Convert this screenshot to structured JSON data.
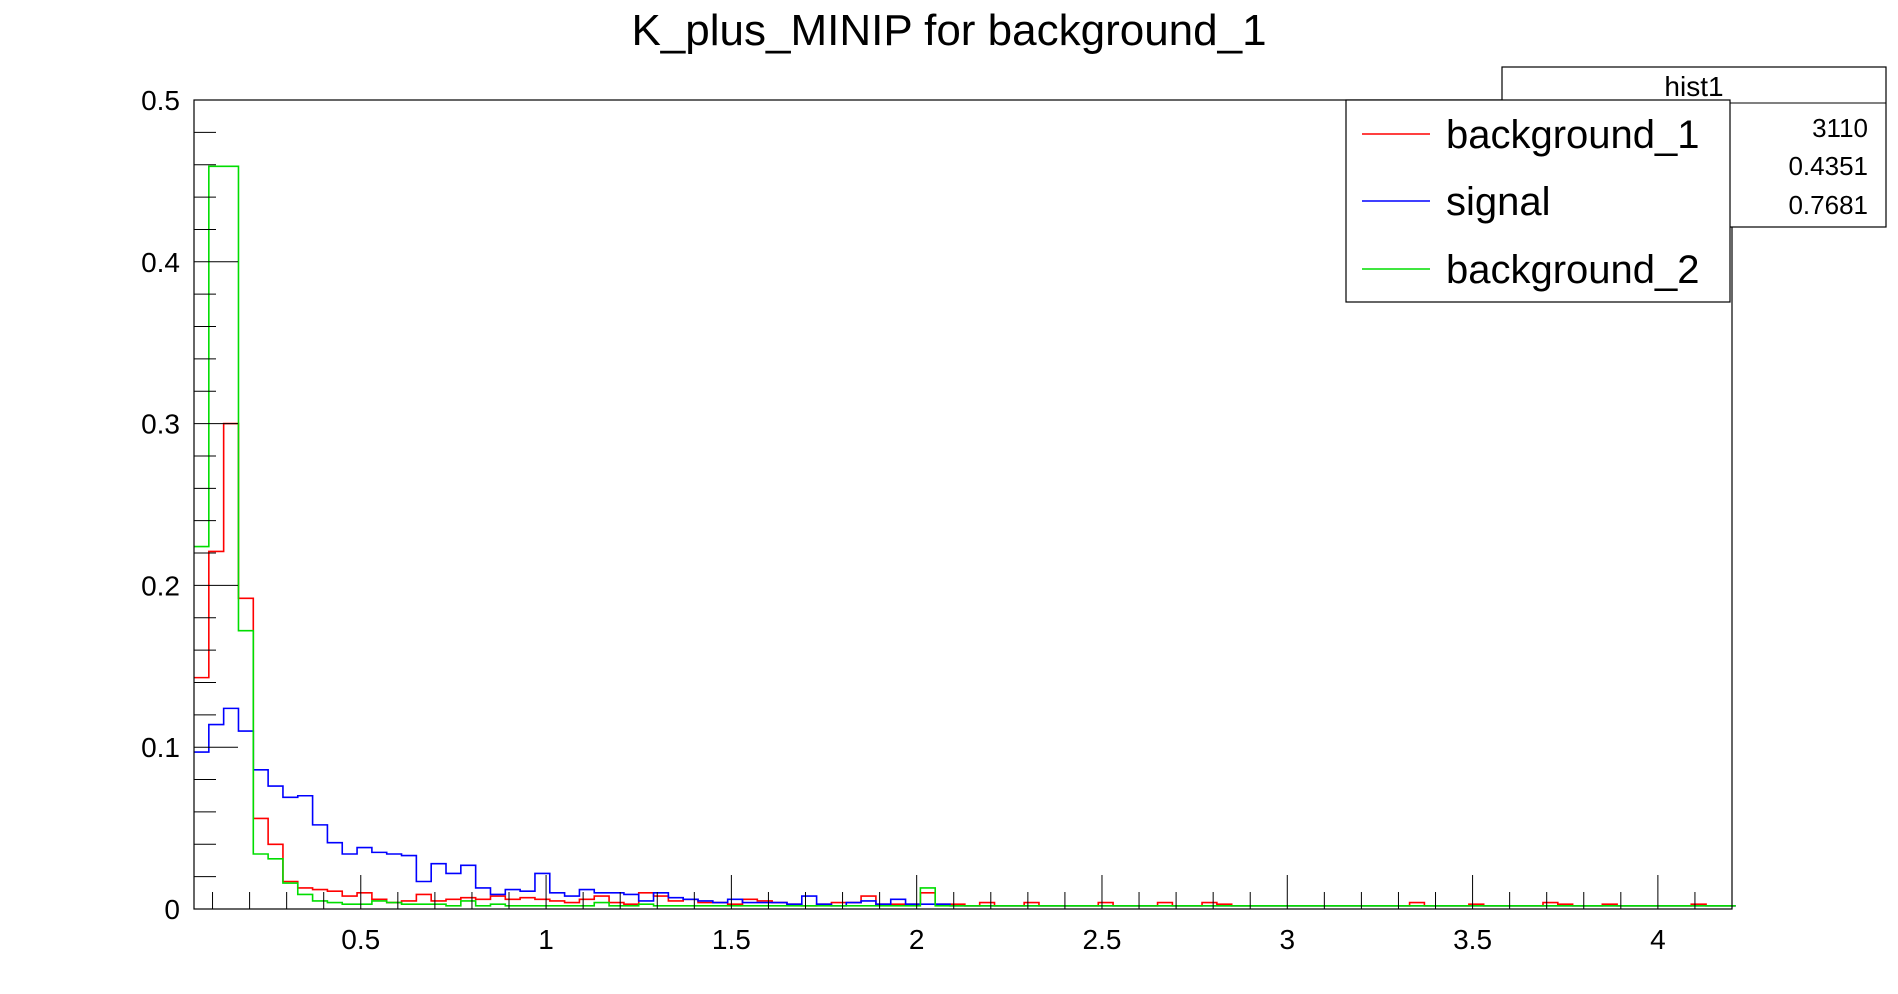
{
  "chart_data": {
    "type": "line",
    "title": "K_plus_MINIP for background_1",
    "xlabel": "",
    "ylabel": "",
    "xlim": [
      0.05,
      4.2
    ],
    "ylim": [
      0,
      0.5
    ],
    "x_ticks": [
      0.5,
      1,
      1.5,
      2,
      2.5,
      3,
      3.5,
      4
    ],
    "x_tick_labels": [
      "0.5",
      "1",
      "1.5",
      "2",
      "2.5",
      "3",
      "3.5",
      "4"
    ],
    "y_ticks": [
      0,
      0.1,
      0.2,
      0.3,
      0.4,
      0.5
    ],
    "y_tick_labels": [
      "0",
      "0.1",
      "0.2",
      "0.3",
      "0.4",
      "0.5"
    ],
    "grid": false,
    "legend_position": "top-right",
    "bins": {
      "x_start": 0.05,
      "bin_width": 0.04,
      "count": 104
    },
    "series": [
      {
        "name": "background_1",
        "color": "#ff0000",
        "values": [
          0.143,
          0.221,
          0.3,
          0.192,
          0.056,
          0.04,
          0.017,
          0.013,
          0.012,
          0.011,
          0.008,
          0.01,
          0.006,
          0.004,
          0.005,
          0.009,
          0.005,
          0.006,
          0.007,
          0.006,
          0.008,
          0.006,
          0.007,
          0.006,
          0.005,
          0.004,
          0.006,
          0.008,
          0.004,
          0.003,
          0.01,
          0.008,
          0.005,
          0.006,
          0.004,
          0.004,
          0.003,
          0.006,
          0.005,
          0.004,
          0.003,
          0.002,
          0.003,
          0.004,
          0.004,
          0.008,
          0.003,
          0.003,
          0.003,
          0.01,
          0.003,
          0.003,
          0.002,
          0.004,
          0.002,
          0.002,
          0.004,
          0.002,
          0.002,
          0.002,
          0.002,
          0.004,
          0.002,
          0.002,
          0.002,
          0.004,
          0.002,
          0.002,
          0.004,
          0.003,
          0.002,
          0.002,
          0.002,
          0.002,
          0.002,
          0.002,
          0.002,
          0.002,
          0.002,
          0.002,
          0.002,
          0.002,
          0.004,
          0.002,
          0.002,
          0.002,
          0.003,
          0.002,
          0.002,
          0.002,
          0.002,
          0.004,
          0.003,
          0.002,
          0.002,
          0.003,
          0.002,
          0.002,
          0.002,
          0.002,
          0.002,
          0.003,
          0.002,
          0.002
        ]
      },
      {
        "name": "signal",
        "color": "#0000ff",
        "values": [
          0.097,
          0.114,
          0.124,
          0.11,
          0.086,
          0.076,
          0.069,
          0.07,
          0.052,
          0.041,
          0.034,
          0.038,
          0.035,
          0.034,
          0.033,
          0.017,
          0.028,
          0.022,
          0.027,
          0.013,
          0.009,
          0.012,
          0.011,
          0.022,
          0.01,
          0.008,
          0.012,
          0.01,
          0.01,
          0.009,
          0.005,
          0.01,
          0.007,
          0.006,
          0.005,
          0.004,
          0.006,
          0.004,
          0.004,
          0.004,
          0.003,
          0.008,
          0.003,
          0.002,
          0.004,
          0.005,
          0.003,
          0.006,
          0.003,
          0.003,
          0.003,
          0.002,
          0.002,
          0.002,
          0.002,
          0.002,
          0.002,
          0.002,
          0.002,
          0.002,
          0.002,
          0.002,
          0.002,
          0.002,
          0.002,
          0.002,
          0.002,
          0.002,
          0.002,
          0.002,
          0.002,
          0.002,
          0.002,
          0.002,
          0.002,
          0.002,
          0.002,
          0.002,
          0.002,
          0.002,
          0.002,
          0.002,
          0.002,
          0.002,
          0.002,
          0.002,
          0.002,
          0.002,
          0.002,
          0.002,
          0.002,
          0.002,
          0.002,
          0.002,
          0.002,
          0.002,
          0.002,
          0.002,
          0.002,
          0.002,
          0.002,
          0.002,
          0.002,
          0.002
        ]
      },
      {
        "name": "background_2",
        "color": "#00dd00",
        "values": [
          0.224,
          0.459,
          0.459,
          0.172,
          0.034,
          0.031,
          0.016,
          0.009,
          0.005,
          0.004,
          0.003,
          0.003,
          0.005,
          0.004,
          0.003,
          0.003,
          0.003,
          0.002,
          0.005,
          0.002,
          0.003,
          0.002,
          0.002,
          0.002,
          0.002,
          0.002,
          0.002,
          0.004,
          0.002,
          0.002,
          0.003,
          0.002,
          0.002,
          0.002,
          0.002,
          0.002,
          0.002,
          0.002,
          0.002,
          0.002,
          0.002,
          0.002,
          0.002,
          0.002,
          0.002,
          0.002,
          0.002,
          0.002,
          0.002,
          0.013,
          0.002,
          0.002,
          0.002,
          0.002,
          0.002,
          0.002,
          0.002,
          0.002,
          0.002,
          0.002,
          0.002,
          0.002,
          0.002,
          0.002,
          0.002,
          0.002,
          0.002,
          0.002,
          0.002,
          0.002,
          0.002,
          0.002,
          0.002,
          0.002,
          0.002,
          0.002,
          0.002,
          0.002,
          0.002,
          0.002,
          0.002,
          0.002,
          0.002,
          0.002,
          0.002,
          0.002,
          0.002,
          0.002,
          0.002,
          0.002,
          0.002,
          0.002,
          0.002,
          0.002,
          0.002,
          0.002,
          0.002,
          0.002,
          0.002,
          0.002,
          0.002,
          0.002,
          0.002,
          0.002
        ]
      }
    ]
  },
  "stats_box": {
    "title": "hist1",
    "entries": "3110",
    "mean": "0.4351",
    "std_dev": "0.7681"
  }
}
